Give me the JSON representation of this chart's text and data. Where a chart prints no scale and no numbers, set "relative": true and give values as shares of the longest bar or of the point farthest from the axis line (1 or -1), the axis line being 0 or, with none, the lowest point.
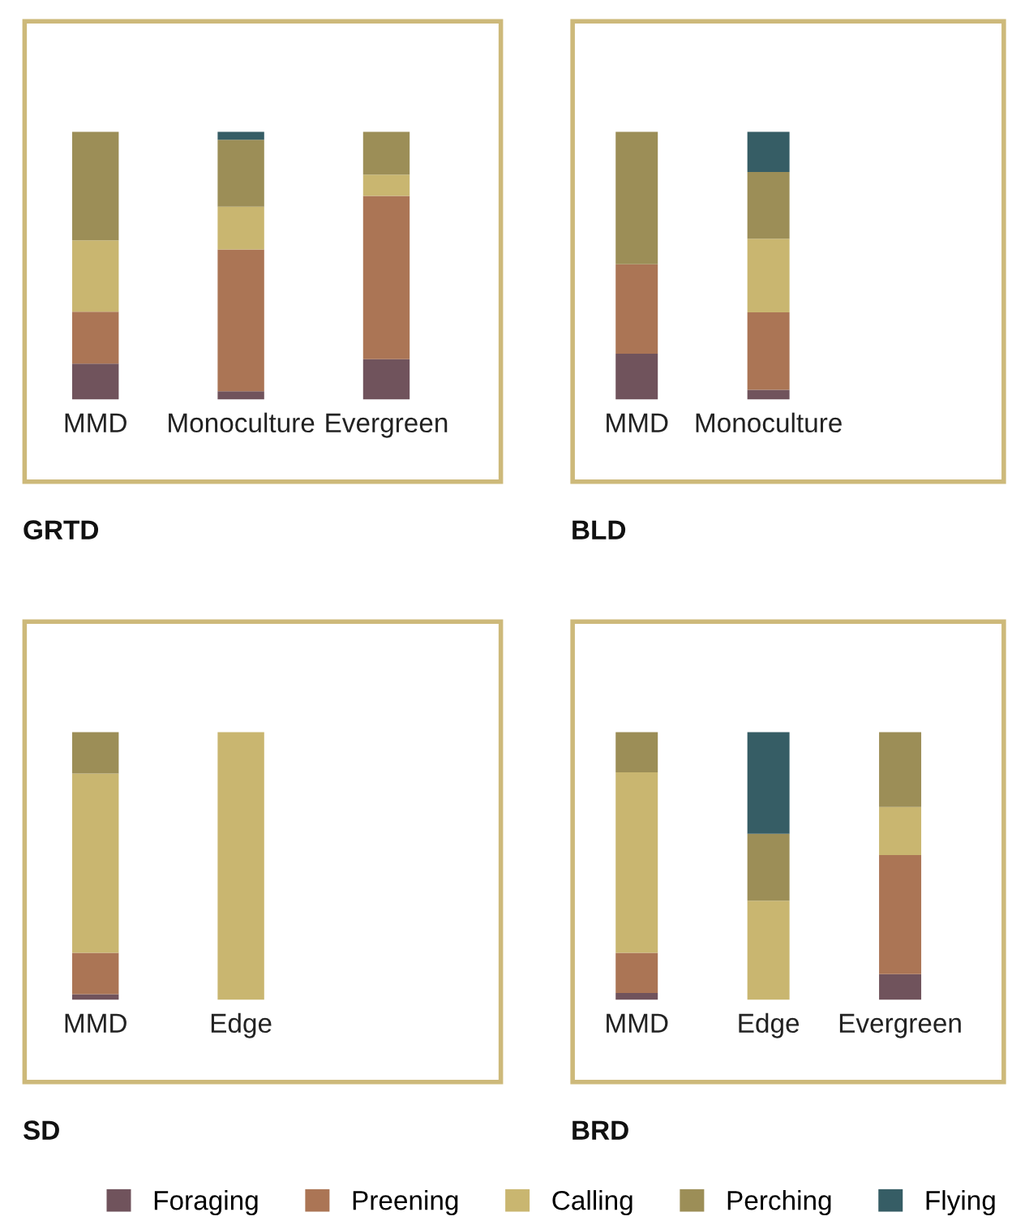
{
  "chart_data": [
    {
      "type": "bar",
      "stacked": true,
      "relative": true,
      "title": "GRTD",
      "legend": "bottom",
      "categories": [
        "MMD",
        "Monoculture",
        "Evergreen"
      ],
      "series": [
        {
          "name": "Foraging",
          "color": "#70535c",
          "values": [
            0.133,
            0.03,
            0.15
          ]
        },
        {
          "name": "Preening",
          "color": "#ab7555",
          "values": [
            0.194,
            0.53,
            0.61
          ]
        },
        {
          "name": "Calling",
          "color": "#c9b670",
          "values": [
            0.267,
            0.16,
            0.08
          ]
        },
        {
          "name": "Perching",
          "color": "#9c8e57",
          "values": [
            0.406,
            0.25,
            0.16
          ]
        },
        {
          "name": "Flying",
          "color": "#365d65",
          "values": [
            null,
            0.03,
            null
          ]
        }
      ]
    },
    {
      "type": "bar",
      "stacked": true,
      "relative": true,
      "title": "BLD",
      "legend": "bottom",
      "categories": [
        "MMD",
        "Monoculture"
      ],
      "series": [
        {
          "name": "Foraging",
          "color": "#70535c",
          "values": [
            0.17,
            0.035
          ]
        },
        {
          "name": "Preening",
          "color": "#ab7555",
          "values": [
            0.335,
            0.29
          ]
        },
        {
          "name": "Calling",
          "color": "#c9b670",
          "values": [
            null,
            0.275
          ]
        },
        {
          "name": "Perching",
          "color": "#9c8e57",
          "values": [
            0.495,
            0.25
          ]
        },
        {
          "name": "Flying",
          "color": "#365d65",
          "values": [
            null,
            0.15
          ]
        }
      ]
    },
    {
      "type": "bar",
      "stacked": true,
      "relative": true,
      "title": "SD",
      "legend": "bottom",
      "categories": [
        "MMD",
        "Edge"
      ],
      "series": [
        {
          "name": "Foraging",
          "color": "#70535c",
          "values": [
            0.02,
            null
          ]
        },
        {
          "name": "Preening",
          "color": "#ab7555",
          "values": [
            0.155,
            null
          ]
        },
        {
          "name": "Calling",
          "color": "#c9b670",
          "values": [
            0.67,
            1
          ]
        },
        {
          "name": "Perching",
          "color": "#9c8e57",
          "values": [
            0.155,
            null
          ]
        }
      ]
    },
    {
      "type": "bar",
      "stacked": true,
      "relative": true,
      "title": "BRD",
      "legend": "bottom",
      "categories": [
        "MMD",
        "Edge",
        "Evergreen"
      ],
      "series": [
        {
          "name": "Foraging",
          "color": "#70535c",
          "values": [
            0.025,
            null,
            0.095
          ]
        },
        {
          "name": "Preening",
          "color": "#ab7555",
          "values": [
            0.15,
            null,
            0.445
          ]
        },
        {
          "name": "Calling",
          "color": "#c9b670",
          "values": [
            0.675,
            0.37,
            0.18
          ]
        },
        {
          "name": "Perching",
          "color": "#9c8e57",
          "values": [
            0.15,
            0.25,
            0.28
          ]
        },
        {
          "name": "Flying",
          "color": "#365d65",
          "values": [
            null,
            0.38,
            null
          ]
        }
      ]
    }
  ]
}
